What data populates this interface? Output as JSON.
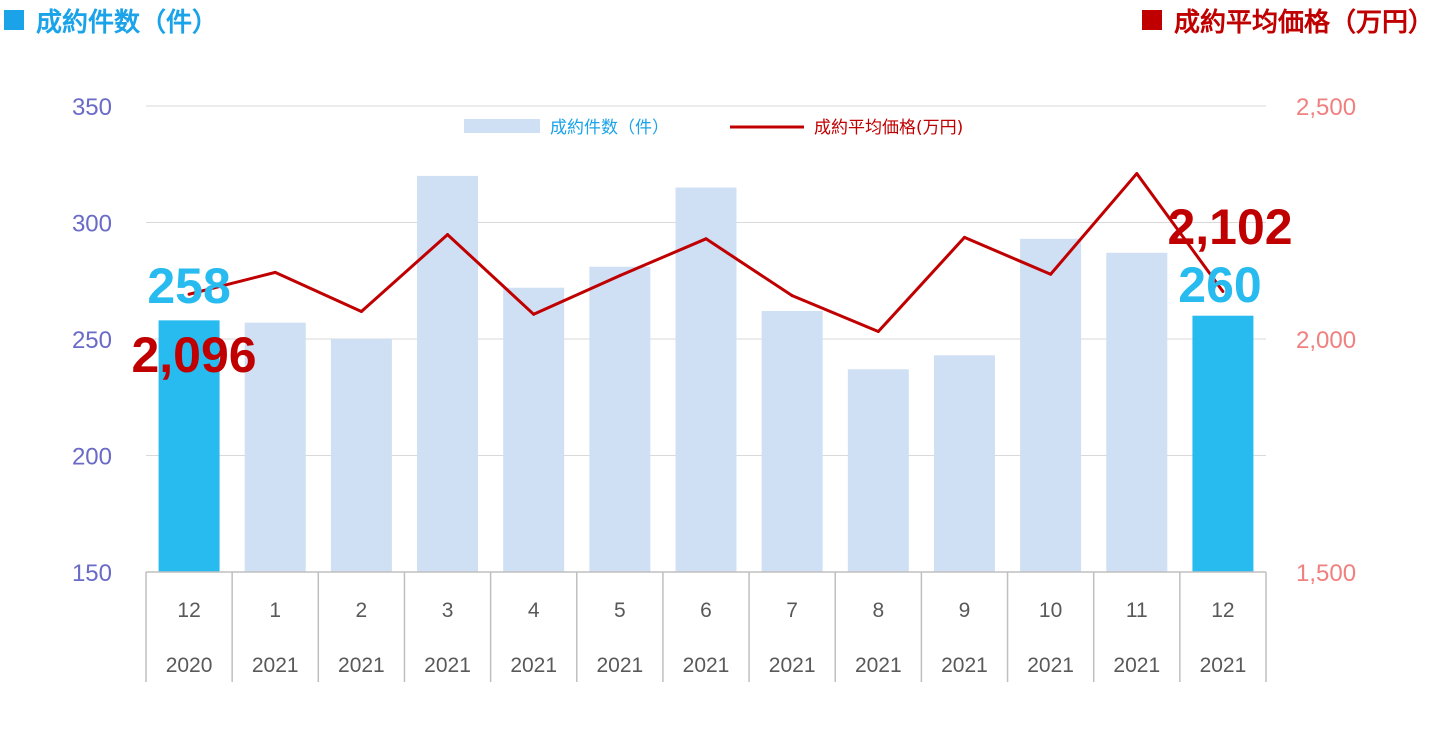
{
  "colors": {
    "count_accent": "#1aa3e8",
    "price_accent": "#c00000",
    "bar_normal": "#cfdff4",
    "bar_highlight": "#27bbef",
    "left_axis_text": "#6a6ac8",
    "right_axis_text": "#f08080",
    "grid": "#d9d9d9"
  },
  "header": {
    "left_title": "成約件数（件）",
    "right_title": "成約平均価格（万円）"
  },
  "chart_data": {
    "type": "bar+line",
    "categories": [
      {
        "month": "12",
        "year": "2020"
      },
      {
        "month": "1",
        "year": "2021"
      },
      {
        "month": "2",
        "year": "2021"
      },
      {
        "month": "3",
        "year": "2021"
      },
      {
        "month": "4",
        "year": "2021"
      },
      {
        "month": "5",
        "year": "2021"
      },
      {
        "month": "6",
        "year": "2021"
      },
      {
        "month": "7",
        "year": "2021"
      },
      {
        "month": "8",
        "year": "2021"
      },
      {
        "month": "9",
        "year": "2021"
      },
      {
        "month": "10",
        "year": "2021"
      },
      {
        "month": "11",
        "year": "2021"
      },
      {
        "month": "12",
        "year": "2021"
      }
    ],
    "series": [
      {
        "name": "成約件数（件）",
        "type": "bar",
        "axis": "left",
        "values": [
          258,
          257,
          250,
          320,
          272,
          281,
          315,
          262,
          237,
          243,
          293,
          287,
          260
        ],
        "highlight": [
          0,
          12
        ]
      },
      {
        "name": "成約平均価格(万円)",
        "type": "line",
        "axis": "right",
        "values": [
          2096,
          2143,
          2059,
          2224,
          2053,
          2136,
          2215,
          2093,
          2016,
          2218,
          2139,
          2355,
          2102
        ]
      }
    ],
    "left_axis": {
      "min": 150,
      "max": 350,
      "ticks": [
        "150",
        "200",
        "250",
        "300",
        "350"
      ]
    },
    "right_axis": {
      "min": 1500,
      "max": 2500,
      "ticks": [
        "1,500",
        "2,000",
        "2,500"
      ]
    },
    "legend_position": "top-center",
    "annotations": [
      {
        "text": "258",
        "series": 0,
        "index": 0
      },
      {
        "text": "2,096",
        "series": 1,
        "index": 0
      },
      {
        "text": "2,102",
        "series": 1,
        "index": 12
      },
      {
        "text": "260",
        "series": 0,
        "index": 12
      }
    ],
    "grid": true
  }
}
